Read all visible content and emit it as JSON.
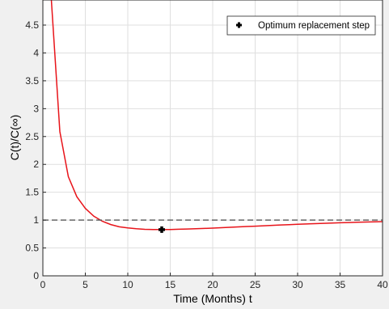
{
  "chart_data": {
    "type": "line",
    "title": "",
    "xlabel": "Time (Months) t",
    "ylabel": "C(t)/C(∞)",
    "xlim": [
      0,
      40
    ],
    "ylim": [
      0,
      4.95
    ],
    "grid": true,
    "legend_position": "top-right",
    "x_ticks": [
      "0",
      "5",
      "10",
      "15",
      "20",
      "25",
      "30",
      "35",
      "40"
    ],
    "y_ticks": [
      "0",
      "0.5",
      "1",
      "1.5",
      "2",
      "2.5",
      "3",
      "3.5",
      "4",
      "4.5"
    ],
    "series": [
      {
        "name": "",
        "style": "solid",
        "color": "#e8141a",
        "x": [
          1,
          2,
          3,
          4,
          5,
          6,
          7,
          8,
          9,
          10,
          11,
          12,
          13,
          14,
          15,
          16,
          17,
          18,
          19,
          20,
          21,
          22,
          23,
          24,
          25,
          26,
          27,
          28,
          29,
          30,
          31,
          32,
          33,
          34,
          35,
          36,
          37,
          38,
          39,
          40
        ],
        "y": [
          4.95,
          2.59,
          1.78,
          1.42,
          1.21,
          1.07,
          0.98,
          0.92,
          0.88,
          0.86,
          0.845,
          0.835,
          0.83,
          0.83,
          0.832,
          0.836,
          0.84,
          0.845,
          0.851,
          0.857,
          0.864,
          0.871,
          0.878,
          0.885,
          0.892,
          0.899,
          0.906,
          0.913,
          0.919,
          0.925,
          0.931,
          0.937,
          0.942,
          0.947,
          0.952,
          0.957,
          0.961,
          0.965,
          0.969,
          0.973
        ]
      },
      {
        "name": "",
        "style": "dashed",
        "color": "#595959",
        "x": [
          0,
          40
        ],
        "y": [
          1,
          1
        ]
      }
    ],
    "markers": [
      {
        "name": "Optimum replacement step",
        "x": 14,
        "y": 0.83,
        "color": "#000000"
      }
    ]
  }
}
